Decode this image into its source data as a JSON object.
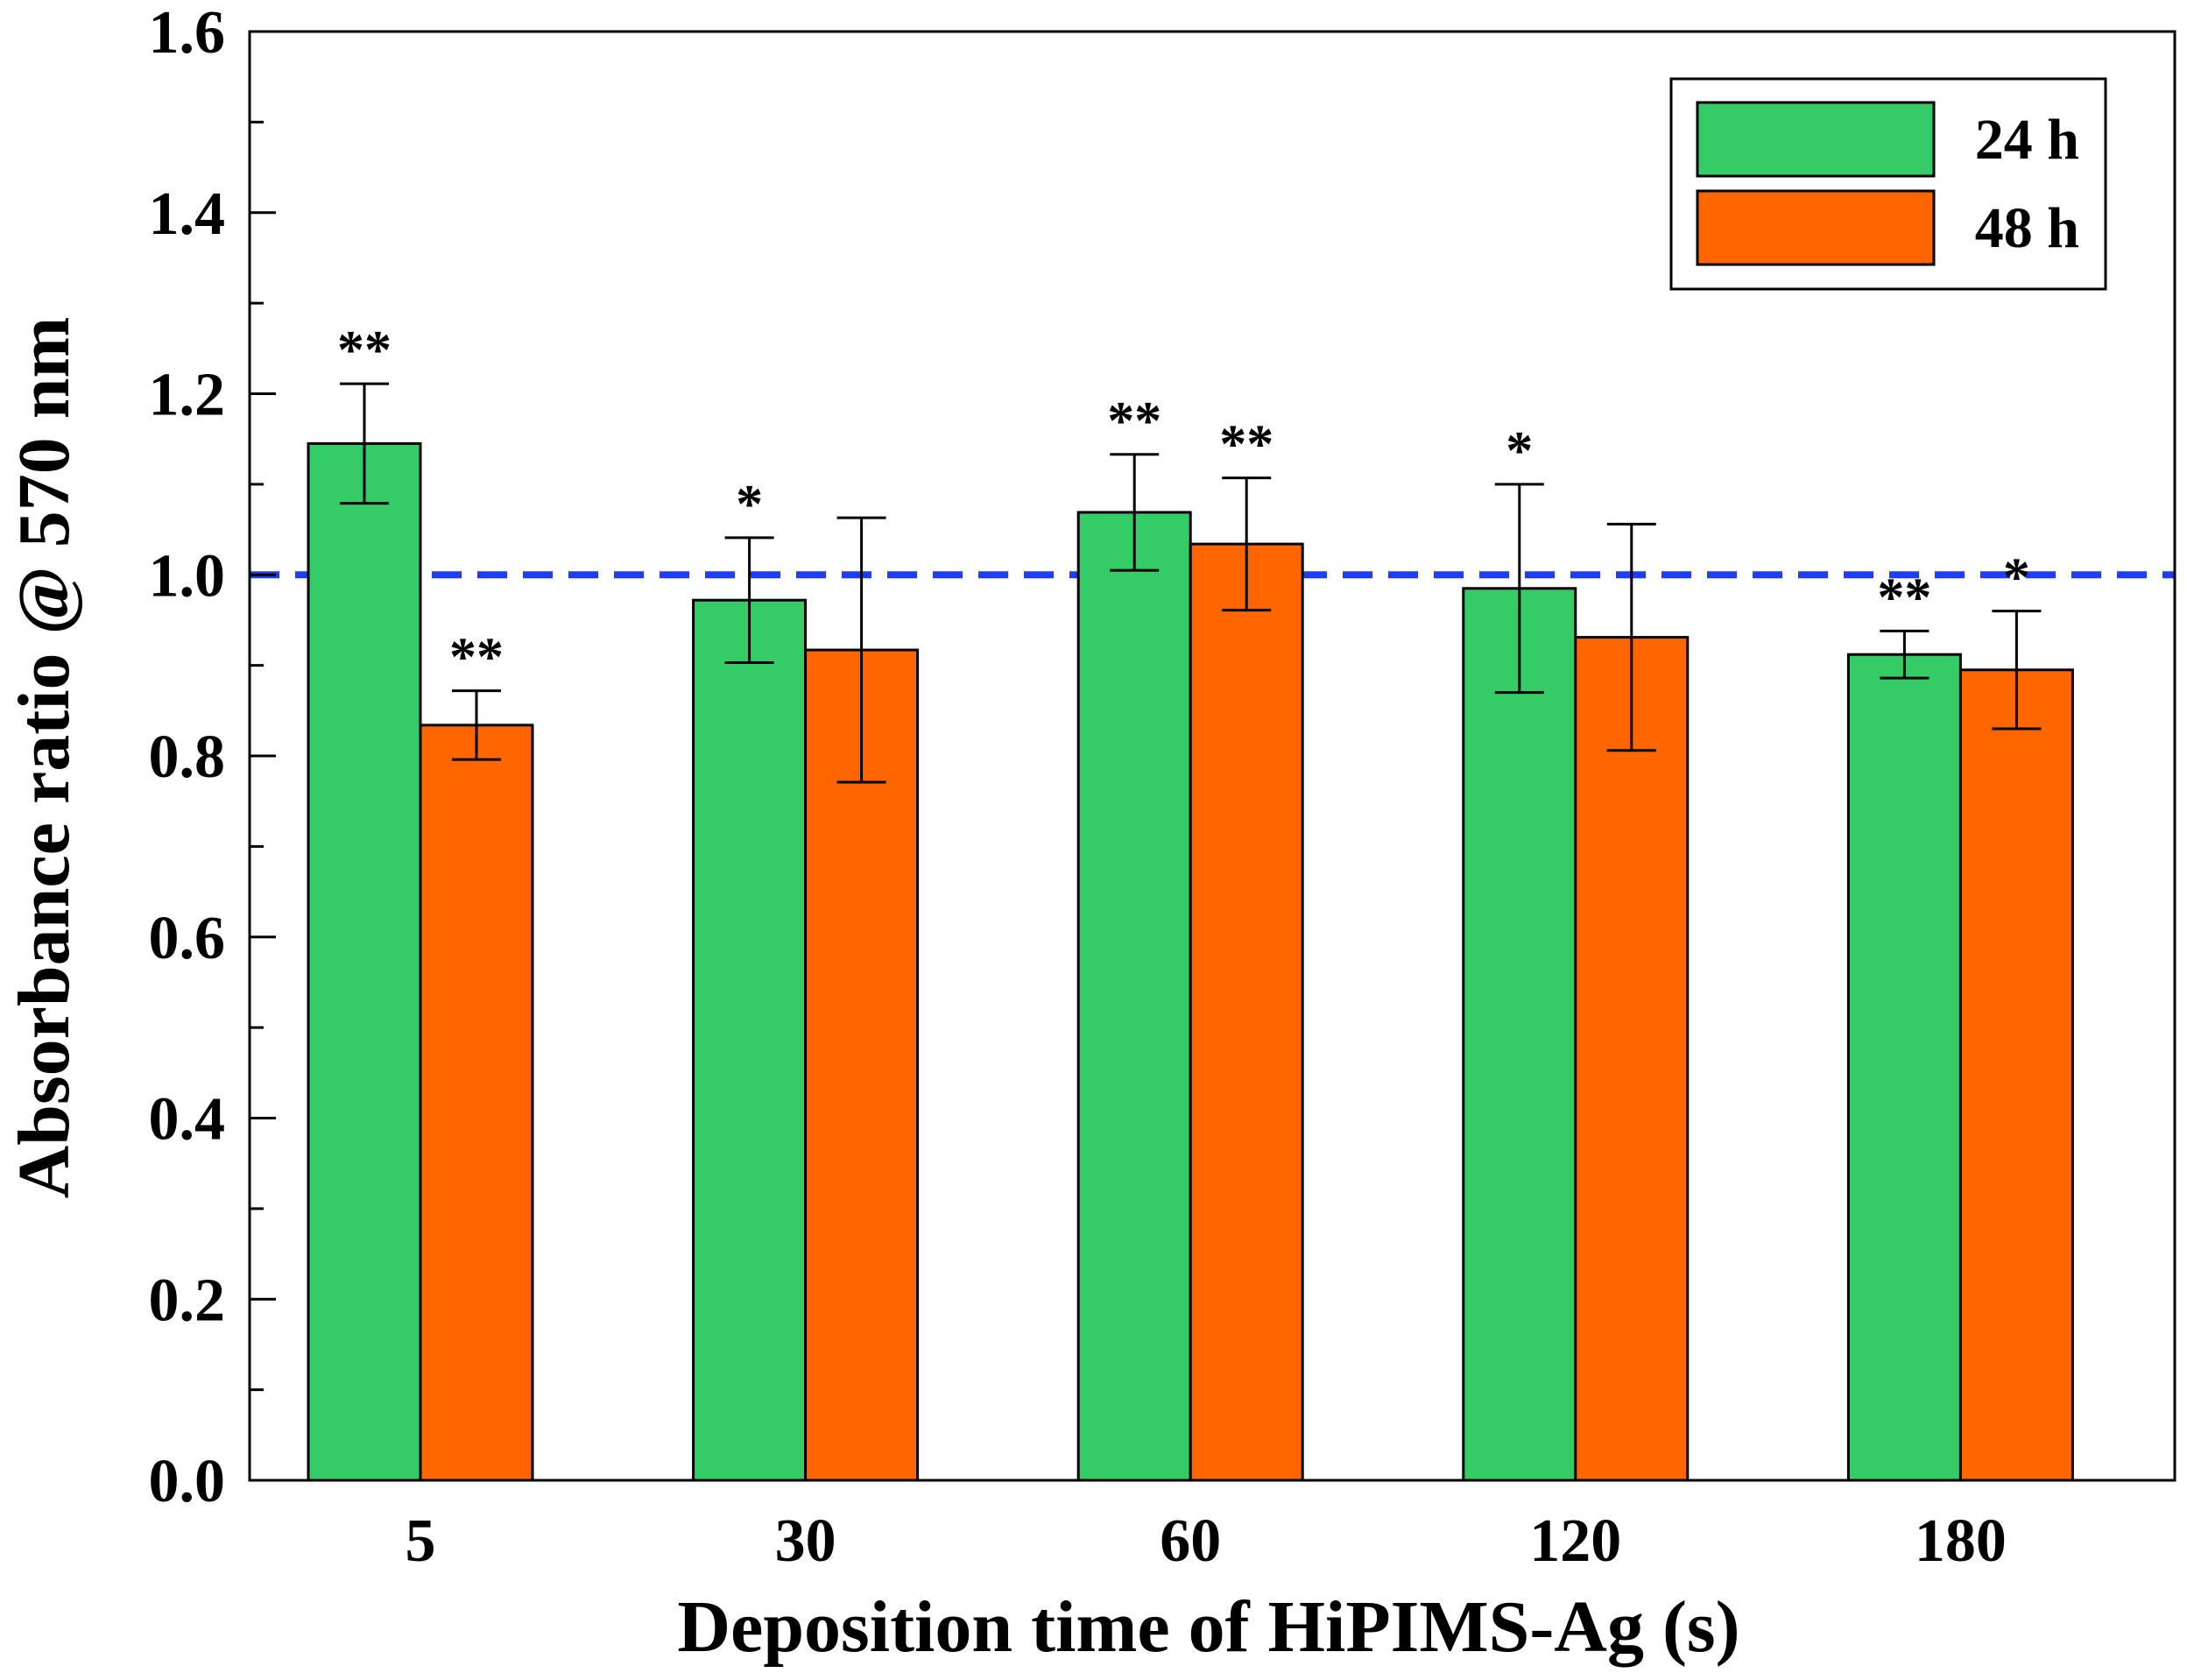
{
  "chart_data": {
    "type": "bar",
    "title": "",
    "xlabel": "Deposition time of HiPIMS-Ag (s)",
    "ylabel": "Absorbance ratio @ 570 nm",
    "ylim": [
      0.0,
      1.6
    ],
    "yticks": [
      "0.0",
      "0.2",
      "0.4",
      "0.6",
      "0.8",
      "1.0",
      "1.2",
      "1.4",
      "1.6"
    ],
    "categories": [
      "5",
      "30",
      "60",
      "120",
      "180"
    ],
    "reference_line": {
      "value": 1.0,
      "style": "dashed",
      "color": "#1f3df2"
    },
    "legend_position": "top-right",
    "series": [
      {
        "name": "24 h",
        "color": "#35cb67",
        "values": [
          1.145,
          0.972,
          1.069,
          0.985,
          0.912
        ],
        "errors": [
          0.066,
          0.069,
          0.064,
          0.115,
          0.026
        ],
        "significance": [
          "**",
          "*",
          "**",
          "*",
          "**"
        ]
      },
      {
        "name": "48 h",
        "color": "#ff6600",
        "values": [
          0.834,
          0.917,
          1.034,
          0.931,
          0.895
        ],
        "errors": [
          0.038,
          0.146,
          0.073,
          0.125,
          0.065
        ],
        "significance": [
          "**",
          "",
          "**",
          "",
          "*"
        ]
      }
    ]
  }
}
